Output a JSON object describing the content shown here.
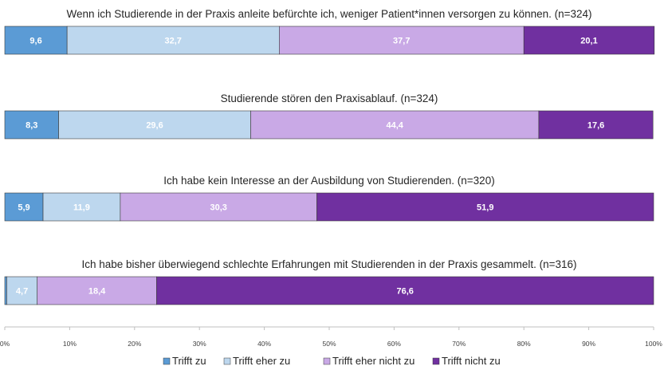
{
  "chart_data": {
    "type": "bar",
    "orientation": "horizontal",
    "stacked": true,
    "percent": true,
    "xlim": [
      0,
      100
    ],
    "x_ticks": [
      "0%",
      "10%",
      "20%",
      "30%",
      "40%",
      "50%",
      "60%",
      "70%",
      "80%",
      "90%",
      "100%"
    ],
    "grid": false,
    "legend": {
      "position": "bottom"
    },
    "series": [
      {
        "name": "Trifft zu",
        "color": "#5b9bd5"
      },
      {
        "name": "Trifft eher zu",
        "color": "#bdd7ee"
      },
      {
        "name": "Trifft eher nicht zu",
        "color": "#c9a9e6"
      },
      {
        "name": "Trifft nicht zu",
        "color": "#7030a0"
      }
    ],
    "bars": [
      {
        "title": "Wenn ich Studierende in der Praxis anleite befürchte ich, weniger Patient*innen versorgen zu können. (n=324)",
        "values": [
          9.6,
          32.7,
          37.7,
          20.1
        ],
        "labels": [
          "9,6",
          "32,7",
          "37,7",
          "20,1"
        ]
      },
      {
        "title": "Studierende stören den Praxisablauf. (n=324)",
        "values": [
          8.3,
          29.6,
          44.4,
          17.6
        ],
        "labels": [
          "8,3",
          "29,6",
          "44,4",
          "17,6"
        ]
      },
      {
        "title": "Ich habe kein Interesse an der Ausbildung von Studierenden. (n=320)",
        "values": [
          5.9,
          11.9,
          30.3,
          51.9
        ],
        "labels": [
          "5,9",
          "11,9",
          "30,3",
          "51,9"
        ]
      },
      {
        "title": "Ich habe bisher überwiegend schlechte Erfahrungen mit Studierenden in der Praxis gesammelt. (n=316)",
        "values": [
          0.3,
          4.7,
          18.4,
          76.6
        ],
        "labels": [
          "",
          "4,7",
          "18,4",
          "76,6"
        ]
      }
    ]
  }
}
